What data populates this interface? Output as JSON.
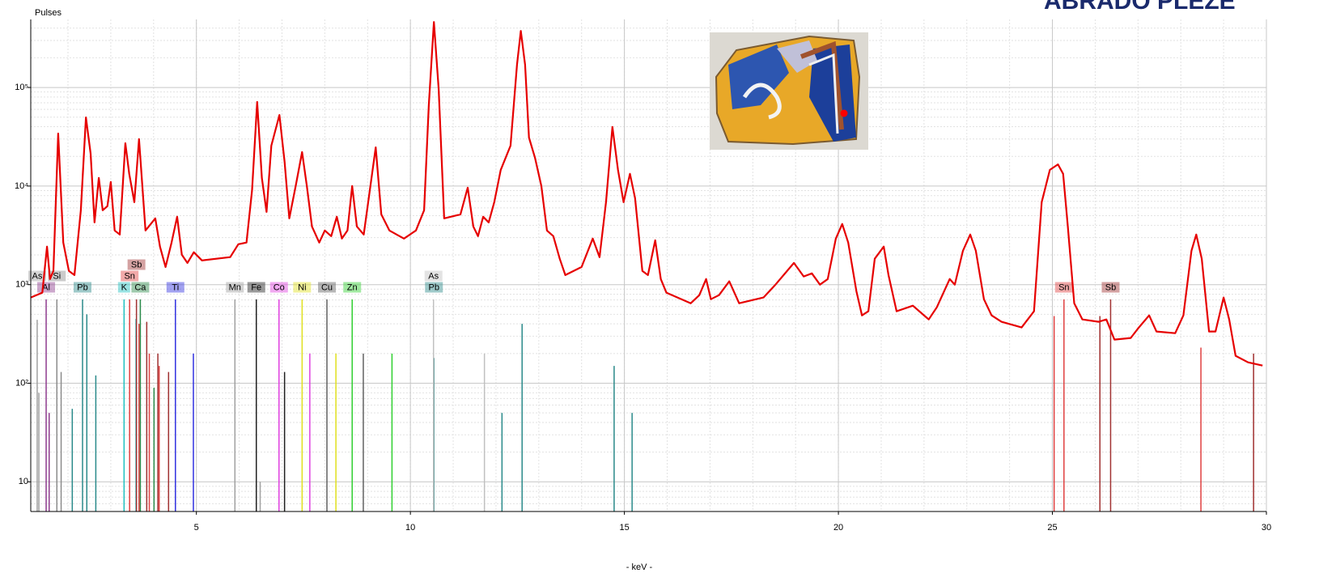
{
  "chart_data": {
    "type": "line",
    "title": "ABRADO PLEZE",
    "y_label": "Pulses",
    "x_label": "- keV -",
    "log_y": true,
    "grid": true,
    "minor_grid": true,
    "xlim": [
      1.13,
      30
    ],
    "ylim": [
      5,
      490000
    ],
    "xticks": [
      5,
      10,
      15,
      20,
      25,
      30
    ],
    "yticks": [
      10,
      {
        "value": 100,
        "label": "10²"
      },
      {
        "value": 1000,
        "label": "10³"
      },
      {
        "value": 10000,
        "label": "10⁴"
      },
      {
        "value": 100000,
        "label": "10⁵"
      }
    ],
    "x": [
      1.13,
      1.4,
      1.51,
      1.58,
      1.66,
      1.77,
      1.89,
      2.02,
      2.15,
      2.3,
      2.42,
      2.53,
      2.62,
      2.72,
      2.81,
      2.92,
      3.0,
      3.09,
      3.21,
      3.34,
      3.43,
      3.55,
      3.66,
      3.81,
      4.04,
      4.15,
      4.28,
      4.42,
      4.55,
      4.66,
      4.79,
      4.94,
      5.13,
      5.79,
      5.98,
      6.17,
      6.3,
      6.42,
      6.53,
      6.64,
      6.75,
      6.94,
      7.06,
      7.17,
      7.32,
      7.47,
      7.58,
      7.7,
      7.87,
      8.0,
      8.15,
      8.28,
      8.4,
      8.53,
      8.64,
      8.75,
      8.91,
      9.19,
      9.32,
      9.51,
      9.85,
      10.13,
      10.32,
      10.43,
      10.55,
      10.66,
      10.79,
      11.17,
      11.34,
      11.47,
      11.58,
      11.7,
      11.83,
      11.96,
      12.11,
      12.34,
      12.49,
      12.58,
      12.68,
      12.77,
      12.91,
      13.06,
      13.19,
      13.34,
      13.49,
      13.62,
      14.0,
      14.26,
      14.42,
      14.57,
      14.72,
      14.85,
      14.98,
      15.13,
      15.25,
      15.42,
      15.55,
      15.72,
      15.85,
      15.98,
      16.55,
      16.75,
      16.91,
      17.02,
      17.21,
      17.45,
      17.68,
      18.25,
      18.53,
      18.96,
      19.19,
      19.38,
      19.57,
      19.75,
      19.94,
      20.09,
      20.23,
      20.42,
      20.55,
      20.7,
      20.85,
      21.06,
      21.17,
      21.36,
      21.74,
      22.11,
      22.3,
      22.6,
      22.72,
      22.91,
      23.08,
      23.21,
      23.4,
      23.58,
      23.81,
      24.28,
      24.57,
      24.75,
      24.94,
      25.13,
      25.25,
      25.36,
      25.51,
      25.7,
      26.08,
      26.26,
      26.45,
      26.83,
      27.02,
      27.26,
      27.43,
      27.87,
      28.06,
      28.25,
      28.36,
      28.49,
      28.66,
      28.81,
      29.0,
      29.13,
      29.28,
      29.57,
      29.91
    ],
    "series": [
      {
        "color": "#e60000",
        "values": [
          740,
          830,
          2430,
          1140,
          1380,
          34100,
          2670,
          1380,
          1250,
          5680,
          49700,
          21300,
          4280,
          12100,
          5680,
          6240,
          11000,
          3540,
          3220,
          27200,
          13300,
          6860,
          29900,
          3540,
          4700,
          2430,
          1510,
          2670,
          4880,
          2010,
          1660,
          2130,
          1760,
          1900,
          2570,
          2670,
          9100,
          71200,
          12100,
          5470,
          25700,
          52600,
          17600,
          4700,
          10000,
          22100,
          10000,
          3890,
          2670,
          3540,
          3100,
          4880,
          2930,
          3540,
          10000,
          3890,
          3220,
          24700,
          5160,
          3540,
          2930,
          3540,
          5680,
          66000,
          461000,
          96400,
          4700,
          5160,
          9630,
          3890,
          3100,
          4880,
          4280,
          6860,
          14600,
          25700,
          170000,
          375000,
          170000,
          31000,
          19400,
          10000,
          3540,
          3100,
          1830,
          1250,
          1510,
          2930,
          1900,
          6860,
          39700,
          14600,
          6860,
          13300,
          7540,
          1380,
          1250,
          2820,
          1140,
          830,
          648,
          782,
          1140,
          712,
          782,
          1080,
          648,
          740,
          1000,
          1660,
          1210,
          1300,
          1000,
          1140,
          2930,
          4120,
          2670,
          860,
          488,
          537,
          1830,
          2430,
          1250,
          537,
          612,
          444,
          589,
          1140,
          1000,
          2210,
          3220,
          2210,
          712,
          488,
          420,
          368,
          537,
          6860,
          14600,
          16600,
          13300,
          3890,
          648,
          444,
          420,
          444,
          277,
          288,
          368,
          488,
          335,
          322,
          488,
          2210,
          3220,
          1830,
          335,
          335,
          740,
          444,
          190,
          163,
          151
        ]
      }
    ],
    "element_lines": [
      {
        "name": "Al",
        "color": "#8e3c8e",
        "energy": [
          1.49,
          1.56
        ],
        "intensity": [
          710,
          50
        ]
      },
      {
        "name": "As",
        "color": "#a0a0a0",
        "energy": [
          1.28,
          1.32
        ],
        "intensity": [
          440,
          80
        ]
      },
      {
        "name": "Si",
        "color": "#8c8c8c",
        "energy": [
          1.74,
          1.84
        ],
        "intensity": [
          710,
          130
        ]
      },
      {
        "name": "Pb",
        "color": "#2a8a8a",
        "energy": [
          2.34,
          2.44,
          2.65,
          2.1
        ],
        "intensity": [
          710,
          500,
          120,
          55
        ]
      },
      {
        "name": "K",
        "color": "#20c0c0",
        "energy": [
          3.31,
          3.59
        ],
        "intensity": [
          710,
          450
        ]
      },
      {
        "name": "Ca",
        "color": "#2a8a4a",
        "energy": [
          3.69,
          4.01
        ],
        "intensity": [
          710,
          90
        ]
      },
      {
        "name": "Sn",
        "color": "#e04040",
        "energy": [
          3.44,
          3.66,
          3.9,
          4.13
        ],
        "intensity": [
          710,
          400,
          200,
          150
        ]
      },
      {
        "name": "Sb",
        "color": "#a03030",
        "energy": [
          3.6,
          3.84,
          4.1,
          4.35
        ],
        "intensity": [
          710,
          420,
          200,
          130
        ]
      },
      {
        "name": "Ti",
        "color": "#3030e0",
        "energy": [
          4.51,
          4.93
        ],
        "intensity": [
          710,
          200
        ]
      },
      {
        "name": "Mn",
        "color": "#a0a0a0",
        "energy": [
          5.9,
          6.49
        ],
        "intensity": [
          710,
          10
        ]
      },
      {
        "name": "Fe",
        "color": "#202020",
        "energy": [
          6.4,
          7.06
        ],
        "intensity": [
          710,
          130
        ]
      },
      {
        "name": "Co",
        "color": "#e040e0",
        "energy": [
          6.93,
          7.65
        ],
        "intensity": [
          710,
          200
        ]
      },
      {
        "name": "Ni",
        "color": "#e0e020",
        "energy": [
          7.47,
          8.26
        ],
        "intensity": [
          710,
          200
        ]
      },
      {
        "name": "Cu",
        "color": "#606060",
        "energy": [
          8.05,
          8.9
        ],
        "intensity": [
          710,
          200
        ]
      },
      {
        "name": "Zn",
        "color": "#30d030",
        "energy": [
          8.64,
          9.57
        ],
        "intensity": [
          710,
          200
        ]
      },
      {
        "name": "Pb",
        "color": "#2a8a8a",
        "energy": [
          10.55,
          12.61,
          14.76,
          15.18,
          12.14
        ],
        "intensity": [
          180,
          400,
          150,
          50,
          50
        ]
      },
      {
        "name": "As",
        "color": "#c0c0c0",
        "energy": [
          10.54,
          11.73
        ],
        "intensity": [
          710,
          200
        ]
      },
      {
        "name": "Sn",
        "color": "#e04040",
        "energy": [
          25.27,
          25.04,
          28.47
        ],
        "intensity": [
          710,
          480,
          230
        ]
      },
      {
        "name": "Sb",
        "color": "#a03030",
        "energy": [
          26.36,
          26.11,
          29.7
        ],
        "intensity": [
          710,
          480,
          200
        ]
      }
    ]
  }
}
